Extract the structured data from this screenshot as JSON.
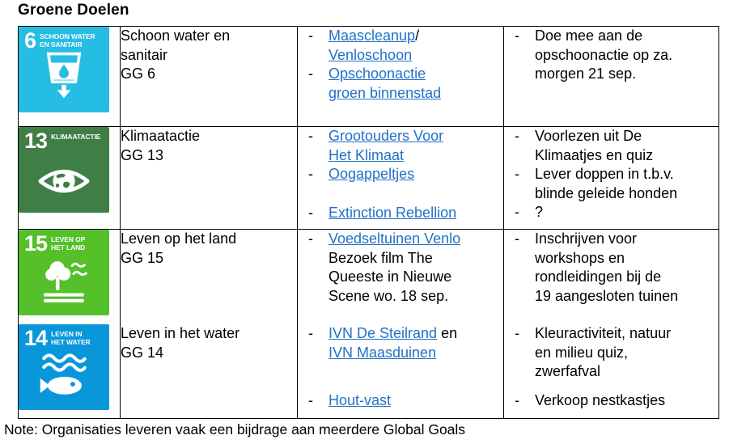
{
  "page": {
    "title": "Groene Doelen",
    "note": "Note: Organisaties leveren vaak een bijdrage aan meerdere Global Goals"
  },
  "colors": {
    "link": "#2271C6",
    "border": "#000000",
    "sdg6": "#26BDE2",
    "sdg13": "#3F7E44",
    "sdg15": "#56C02B",
    "sdg14": "#0A97D9"
  },
  "table": {
    "bullet_marker": "-",
    "rows": [
      {
        "blocks": [
          {
            "sdg": {
              "number": "6",
              "label_lines": [
                "SCHOON WATER",
                "EN SANITAIR"
              ],
              "color": "#26BDE2",
              "icon": "water-sanitation"
            },
            "name_lines": [
              "Schoon water en",
              "sanitair",
              "GG 6"
            ]
          }
        ],
        "links": [
          {
            "segments": [
              {
                "t": "Maascleanup",
                "link": true
              },
              {
                "t": "/"
              },
              {
                "br": true
              },
              {
                "t": "Venloschoon",
                "link": true
              }
            ]
          },
          {
            "segments": [
              {
                "t": "Opschoonactie",
                "link": true
              },
              {
                "br": true
              },
              {
                "t": "groen binnenstad",
                "link": true
              }
            ]
          }
        ],
        "activities": [
          {
            "segments": [
              {
                "t": "Doe mee aan de"
              },
              {
                "br": true
              },
              {
                "t": "opschoonactie op za."
              },
              {
                "br": true
              },
              {
                "t": "morgen 21 sep."
              }
            ]
          }
        ]
      },
      {
        "blocks": [
          {
            "sdg": {
              "number": "13",
              "label_lines": [
                "KLIMAATACTIE"
              ],
              "color": "#3F7E44",
              "icon": "climate-eye"
            },
            "name_lines": [
              "Klimaatactie",
              "GG 13"
            ]
          }
        ],
        "links": [
          {
            "segments": [
              {
                "t": "Grootouders Voor",
                "link": true
              },
              {
                "br": true
              },
              {
                "t": "Het Klimaat",
                "link": true
              }
            ]
          },
          {
            "segments": [
              {
                "t": "Oogappeltjes",
                "link": true
              }
            ]
          },
          {
            "gap": 24,
            "segments": [
              {
                "t": "Extinction Rebellion",
                "link": true
              }
            ]
          }
        ],
        "activities": [
          {
            "segments": [
              {
                "t": "Voorlezen uit De"
              },
              {
                "br": true
              },
              {
                "t": "Klimaatjes en quiz"
              }
            ]
          },
          {
            "segments": [
              {
                "t": "Lever doppen in t.b.v."
              },
              {
                "br": true
              },
              {
                "t": "blinde geleide honden"
              }
            ]
          },
          {
            "segments": [
              {
                "t": "?"
              }
            ]
          }
        ]
      },
      {
        "blocks": [
          {
            "sdg": {
              "number": "15",
              "label_lines": [
                "LEVEN OP",
                "HET LAND"
              ],
              "color": "#56C02B",
              "icon": "tree-land"
            },
            "name_lines": [
              "Leven op het land",
              "GG 15"
            ]
          },
          {
            "sdg": {
              "number": "14",
              "label_lines": [
                "LEVEN IN",
                "HET WATER"
              ],
              "color": "#0A97D9",
              "icon": "fish-water"
            },
            "name_lines": [
              "Leven in het water",
              "GG 14"
            ]
          }
        ],
        "links": [
          {
            "segments": [
              {
                "t": "Voedseltuinen Venlo",
                "link": true
              },
              {
                "br": true
              },
              {
                "t": "Bezoek film The"
              },
              {
                "br": true
              },
              {
                "t": "Queeste in Nieuwe"
              },
              {
                "br": true
              },
              {
                "t": "Scene wo. 18 sep."
              }
            ]
          },
          {
            "gap": 23,
            "segments": [
              {
                "t": "IVN De Steilrand",
                "link": true
              },
              {
                "t": " en"
              },
              {
                "br": true
              },
              {
                "t": "IVN Maasduinen",
                "link": true
              }
            ]
          },
          {
            "gap": 36,
            "segments": [
              {
                "t": "Hout-vast",
                "link": true
              }
            ]
          }
        ],
        "activities": [
          {
            "segments": [
              {
                "t": "Inschrijven voor"
              },
              {
                "br": true
              },
              {
                "t": "workshops en"
              },
              {
                "br": true
              },
              {
                "t": "rondleidingen bij de"
              },
              {
                "br": true
              },
              {
                "t": "19 aangesloten tuinen"
              }
            ]
          },
          {
            "gap": 23,
            "segments": [
              {
                "t": "Kleuractiviteit, natuur"
              },
              {
                "br": true
              },
              {
                "t": "en milieu quiz,"
              },
              {
                "br": true
              },
              {
                "t": "zwerfafval"
              }
            ]
          },
          {
            "gap": 12,
            "segments": [
              {
                "t": "Verkoop nestkastjes"
              }
            ]
          }
        ]
      }
    ]
  }
}
